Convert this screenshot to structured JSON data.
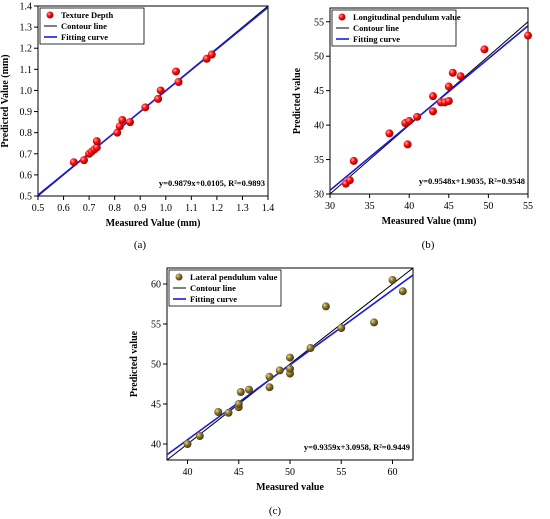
{
  "chart_data": [
    {
      "type": "scatter",
      "panel_label": "(a)",
      "xlabel": "Measured Value (mm)",
      "ylabel": "Predicted Value (mm)",
      "xlim": [
        0.5,
        1.4
      ],
      "ylim": [
        0.5,
        1.4
      ],
      "xticks": [
        "0.5",
        "0.6",
        "0.7",
        "0.8",
        "0.9",
        "1.0",
        "1.1",
        "1.2",
        "1.3",
        "1.4"
      ],
      "yticks": [
        "0.5",
        "0.6",
        "0.7",
        "0.8",
        "0.9",
        "1.0",
        "1.1",
        "1.2",
        "1.3",
        "1.4"
      ],
      "legend_position": "top-left",
      "legend": [
        "Texture Depth",
        "Contour line",
        "Fitting curve"
      ],
      "equation": "y=0.9879x+0.0105, R²=0.9893",
      "fit": {
        "slope": 0.9879,
        "intercept": 0.0105
      },
      "colors": {
        "points": "#ff0000",
        "fit": "#1a1adb",
        "contour": "#000000"
      },
      "point_style": "red-sphere",
      "series": [
        {
          "name": "Texture Depth",
          "x": [
            0.64,
            0.68,
            0.7,
            0.71,
            0.72,
            0.73,
            0.73,
            0.81,
            0.82,
            0.83,
            0.86,
            0.92,
            0.97,
            0.98,
            1.04,
            1.05,
            1.16,
            1.18
          ],
          "y": [
            0.66,
            0.67,
            0.7,
            0.71,
            0.72,
            0.73,
            0.76,
            0.8,
            0.83,
            0.86,
            0.85,
            0.92,
            0.96,
            1.0,
            1.09,
            1.04,
            1.15,
            1.17
          ]
        }
      ]
    },
    {
      "type": "scatter",
      "panel_label": "(b)",
      "xlabel": "Measured Value (mm)",
      "ylabel": "Predicted value",
      "xlim": [
        30,
        55
      ],
      "ylim": [
        30,
        57
      ],
      "xticks": [
        "30",
        "35",
        "40",
        "45",
        "50",
        "55"
      ],
      "yticks": [
        "30",
        "35",
        "40",
        "45",
        "50",
        "55"
      ],
      "legend_position": "top-left",
      "legend": [
        "Longitudinal pendulum value",
        "Contour line",
        "Fitting curve"
      ],
      "equation": "y=0.9548x+1.9035, R²=0.9548",
      "fit": {
        "slope": 0.9548,
        "intercept": 1.9035
      },
      "colors": {
        "points": "#ff0000",
        "fit": "#1a1adb",
        "contour": "#000000"
      },
      "point_style": "red-sphere",
      "series": [
        {
          "name": "Longitudinal pendulum value",
          "x": [
            32.0,
            32.5,
            33.0,
            37.5,
            39.5,
            40.0,
            41.0,
            43.0,
            43.0,
            44.0,
            44.5,
            45.0,
            45.0,
            45.5,
            46.5,
            49.5,
            55.0,
            39.8
          ],
          "y": [
            31.5,
            32.0,
            34.8,
            38.8,
            40.3,
            40.6,
            41.2,
            42.0,
            44.2,
            43.3,
            43.3,
            45.6,
            43.5,
            47.6,
            47.1,
            51.0,
            53.0,
            37.2
          ]
        }
      ]
    },
    {
      "type": "scatter",
      "panel_label": "(c)",
      "xlabel": "Measured value",
      "ylabel": "Predicted value",
      "xlim": [
        38,
        62
      ],
      "ylim": [
        38,
        62
      ],
      "xticks": [
        "40",
        "45",
        "50",
        "55",
        "60"
      ],
      "yticks": [
        "40",
        "45",
        "50",
        "55",
        "60"
      ],
      "legend_position": "top-left",
      "legend": [
        "Lateral pendulum value",
        "Contour line",
        "Fitting curve"
      ],
      "equation": "y=0.9359x+3.0958, R²=0.9449",
      "fit": {
        "slope": 0.9359,
        "intercept": 3.0958
      },
      "colors": {
        "points": "#7d6a2e",
        "fit": "#1a1adb",
        "contour": "#000000"
      },
      "point_style": "olive-sphere",
      "series": [
        {
          "name": "Lateral pendulum value",
          "x": [
            40.0,
            41.2,
            43.0,
            44.0,
            45.0,
            45.0,
            45.2,
            46.0,
            48.0,
            48.0,
            49.0,
            50.0,
            50.0,
            50.0,
            52.0,
            53.5,
            55.0,
            58.2,
            60.0,
            61.0
          ],
          "y": [
            40.0,
            41.0,
            44.0,
            43.9,
            44.6,
            45.0,
            46.5,
            46.8,
            47.1,
            48.4,
            49.2,
            48.8,
            49.4,
            50.8,
            52.0,
            57.2,
            54.5,
            55.2,
            60.5,
            59.1
          ]
        }
      ]
    }
  ]
}
